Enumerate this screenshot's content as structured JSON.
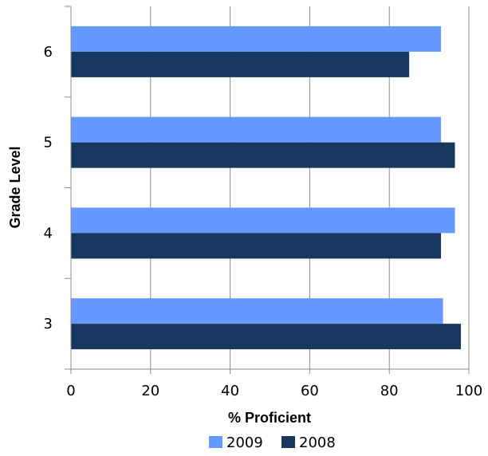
{
  "chart_data": {
    "type": "bar",
    "orientation": "horizontal",
    "categories": [
      "3",
      "4",
      "5",
      "6"
    ],
    "series": [
      {
        "name": "2009",
        "values": [
          93.5,
          96.5,
          93.0,
          93.0
        ],
        "color": "#6699ff"
      },
      {
        "name": "2008",
        "values": [
          98.0,
          93.0,
          96.5,
          85.0
        ],
        "color": "#17375e"
      }
    ],
    "xlabel": "% Proficient",
    "ylabel": "Grade Level",
    "xlim": [
      0,
      100
    ],
    "xticks": [
      "0",
      "20",
      "40",
      "60",
      "80",
      "100"
    ],
    "grid": true,
    "legend_position": "bottom"
  }
}
